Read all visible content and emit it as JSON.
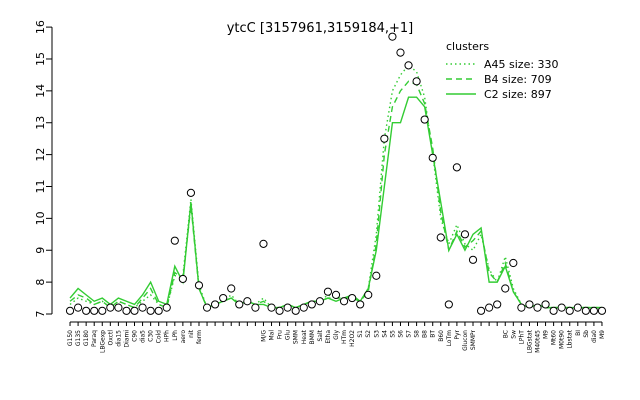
{
  "chart_data": {
    "type": "line",
    "title": "ytcC [3157961,3159184,+1]",
    "categories": [
      "G150",
      "G135",
      "G180",
      "Paraq",
      "LBGexp",
      "Oxctl",
      "dia15",
      "Diami",
      "C90",
      "dia5",
      "C30",
      "Cold",
      "HPh",
      "LPh",
      "aero",
      "nit",
      "ferm",
      null,
      null,
      null,
      null,
      null,
      null,
      null,
      "M/G",
      "Mal",
      "Fru",
      "Glu",
      "SMM",
      "Heat",
      "BMM",
      "Salt",
      "Etha",
      "Gly",
      "HTm",
      "H2O2",
      "S1",
      "S2",
      "S3",
      "S4",
      "S5",
      "S6",
      "S7",
      "S8",
      "B8",
      "BT",
      "B60",
      "LoTm",
      "Pyr",
      "Glucon",
      "SMMPr",
      null,
      null,
      null,
      "BC",
      "Sw",
      "LPhT",
      "LBGstat",
      "M40t45",
      "M9",
      "Mt60",
      "M0t90",
      "Lbstat",
      "BI",
      "Sb",
      "dia0",
      "M9"
    ],
    "points": [
      7.1,
      7.2,
      7.1,
      7.1,
      7.1,
      7.2,
      7.2,
      7.1,
      7.1,
      7.2,
      7.1,
      7.1,
      7.2,
      9.3,
      8.1,
      10.8,
      7.9,
      7.2,
      7.3,
      7.5,
      7.8,
      7.3,
      7.4,
      7.2,
      9.2,
      7.2,
      7.1,
      7.2,
      7.1,
      7.2,
      7.3,
      7.4,
      7.7,
      7.6,
      7.4,
      7.5,
      7.3,
      7.6,
      8.2,
      12.5,
      15.7,
      15.2,
      14.8,
      14.3,
      13.1,
      11.9,
      9.4,
      7.3,
      11.6,
      9.5,
      8.7,
      7.1,
      7.2,
      7.3,
      7.8,
      8.6,
      7.2,
      7.3,
      7.2,
      7.3,
      7.1,
      7.2,
      7.1,
      7.2,
      7.1,
      7.1,
      7.1
    ],
    "legend_title": "clusters",
    "series": [
      {
        "name": "A45 size: 330",
        "color": "#33cc33",
        "dash": "dotted",
        "values": [
          7.3,
          7.5,
          7.4,
          7.3,
          7.4,
          7.2,
          7.4,
          7.3,
          7.2,
          7.4,
          7.6,
          7.3,
          7.2,
          8.2,
          8.2,
          10.6,
          7.9,
          7.2,
          7.3,
          7.4,
          7.6,
          7.3,
          7.4,
          7.3,
          7.5,
          7.2,
          7.2,
          7.3,
          7.2,
          7.3,
          7.4,
          7.4,
          7.6,
          7.5,
          7.5,
          7.5,
          7.4,
          7.8,
          9.5,
          12.5,
          14.0,
          14.5,
          14.8,
          14.6,
          13.8,
          12.0,
          10.0,
          9.2,
          9.8,
          9.2,
          9.0,
          9.5,
          8.4,
          8.0,
          8.8,
          7.8,
          7.3,
          7.2,
          7.3,
          7.2,
          7.2,
          7.2,
          7.2,
          7.2,
          7.2,
          7.2,
          7.2
        ]
      },
      {
        "name": "B4 size: 709",
        "color": "#33cc33",
        "dash": "dashed",
        "values": [
          7.4,
          7.6,
          7.5,
          7.3,
          7.4,
          7.2,
          7.4,
          7.3,
          7.2,
          7.5,
          7.8,
          7.3,
          7.2,
          8.3,
          8.1,
          10.4,
          7.8,
          7.2,
          7.3,
          7.4,
          7.5,
          7.3,
          7.4,
          7.3,
          7.4,
          7.2,
          7.2,
          7.3,
          7.2,
          7.3,
          7.4,
          7.4,
          7.5,
          7.5,
          7.5,
          7.5,
          7.4,
          7.7,
          9.2,
          12.0,
          13.5,
          14.0,
          14.3,
          14.2,
          13.6,
          12.2,
          10.2,
          9.0,
          9.6,
          9.1,
          9.3,
          9.6,
          8.3,
          8.0,
          8.6,
          7.7,
          7.3,
          7.2,
          7.3,
          7.2,
          7.2,
          7.2,
          7.2,
          7.2,
          7.2,
          7.2,
          7.2
        ]
      },
      {
        "name": "C2 size: 897",
        "color": "#33cc33",
        "dash": "solid",
        "values": [
          7.5,
          7.8,
          7.6,
          7.4,
          7.5,
          7.3,
          7.5,
          7.4,
          7.3,
          7.6,
          8.0,
          7.4,
          7.3,
          8.5,
          8.0,
          10.5,
          7.8,
          7.2,
          7.3,
          7.4,
          7.5,
          7.3,
          7.4,
          7.3,
          7.3,
          7.2,
          7.2,
          7.3,
          7.2,
          7.3,
          7.4,
          7.4,
          7.5,
          7.4,
          7.5,
          7.6,
          7.4,
          7.8,
          9.0,
          11.0,
          13.0,
          13.0,
          13.8,
          13.8,
          13.5,
          12.0,
          10.5,
          9.0,
          9.5,
          9.0,
          9.5,
          9.7,
          8.0,
          8.0,
          8.5,
          7.7,
          7.3,
          7.2,
          7.3,
          7.2,
          7.2,
          7.2,
          7.2,
          7.2,
          7.2,
          7.2,
          7.2
        ]
      }
    ],
    "ylim": [
      7,
      16
    ],
    "yticks": [
      7,
      8,
      9,
      10,
      11,
      12,
      13,
      14,
      15,
      16
    ]
  }
}
